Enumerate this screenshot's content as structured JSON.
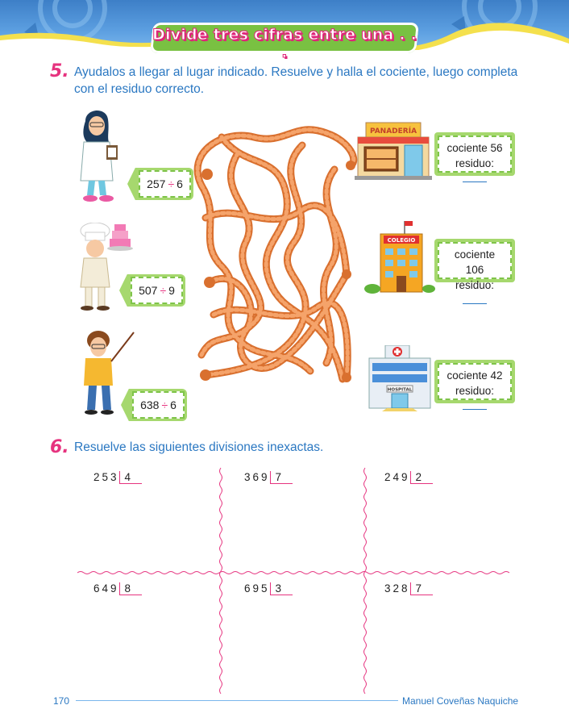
{
  "header": {
    "title": "Divide tres cifras entre una . . ."
  },
  "exercise5": {
    "number": "5.",
    "instruction_line1": "Ayudalos a llegar al lugar indicado. Resuelve y halla el cociente, luego completa",
    "instruction_line2": "con el residuo correcto.",
    "people": [
      {
        "name": "doctor",
        "dividend": "257",
        "symbol": "÷",
        "divisor": "6"
      },
      {
        "name": "chef",
        "dividend": "507",
        "symbol": "÷",
        "divisor": "9"
      },
      {
        "name": "teacher",
        "dividend": "638",
        "symbol": "÷",
        "divisor": "6"
      }
    ],
    "places": [
      {
        "name": "panaderia",
        "sign": "PANADERÍA",
        "cociente_label": "cociente 56",
        "residuo_label": "residuo:"
      },
      {
        "name": "colegio",
        "sign": "COLEGIO",
        "cociente_label": "cociente 106",
        "residuo_label": "residuo:"
      },
      {
        "name": "hospital",
        "sign": "HOSPITAL",
        "cociente_label": "cociente 42",
        "residuo_label": "residuo:"
      }
    ]
  },
  "exercise6": {
    "number": "6.",
    "instruction": "Resuelve las siguientes divisiones inexactas.",
    "divisions": [
      {
        "dividend": "253",
        "divisor": "4"
      },
      {
        "dividend": "369",
        "divisor": "7"
      },
      {
        "dividend": "249",
        "divisor": "2"
      },
      {
        "dividend": "649",
        "divisor": "8"
      },
      {
        "dividend": "695",
        "divisor": "3"
      },
      {
        "dividend": "328",
        "divisor": "7"
      }
    ]
  },
  "footer": {
    "page_number": "170",
    "author": "Manuel Coveñas Naquiche"
  },
  "colors": {
    "accent_pink": "#e6337f",
    "text_blue": "#2b78c2",
    "green": "#79c142",
    "rope": "#f08a4b"
  }
}
